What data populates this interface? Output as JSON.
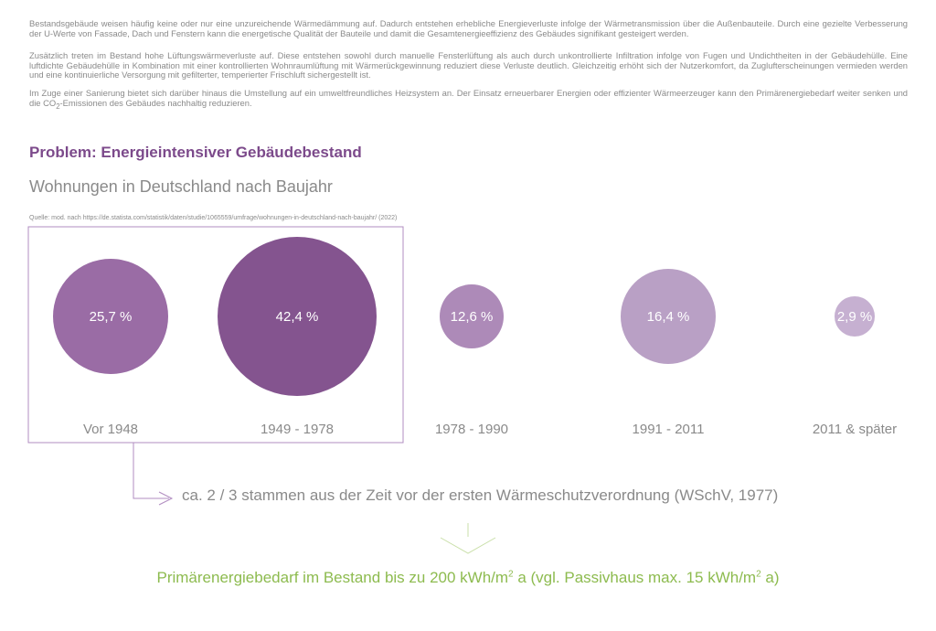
{
  "paragraphs": [
    "Bestandsgebäude weisen häufig keine oder nur eine unzureichende Wärmedämmung auf. Dadurch entstehen erhebliche Energieverluste infolge der Wärmetransmission über die Außenbauteile. Durch eine gezielte Verbesserung der U-Werte von Fassade, Dach und Fenstern kann die energetische Qualität der Bauteile und damit die Gesamtenergieeffizienz des Gebäudes signifikant gesteigert werden.",
    "Zusätzlich treten im Bestand hohe Lüftungswärmeverluste auf. Diese entstehen sowohl durch manuelle Fensterlüftung als auch durch unkontrollierte Infiltration infolge von Fugen und Undichtheiten in der Gebäudehülle. Eine luftdichte Gebäudehülle in Kombination mit einer kontrollierten Wohnraumlüftung mit Wärmerückgewinnung reduziert diese Verluste deutlich. Gleichzeitig erhöht sich der Nutzerkomfort, da Zuglufterscheinungen vermieden werden und eine kontinuierliche Versorgung mit gefilterter, temperierter Frischluft sichergestellt ist.",
    {
      "before": "Im Zuge einer Sanierung bietet sich darüber hinaus die Umstellung auf ein umweltfreundliches Heizsystem an. Der Einsatz erneuerbarer Energien oder effizienter Wärmeerzeuger kann den Primärenergiebedarf weiter senken und die CO",
      "sub": "2",
      "after": "-Emissionen des Gebäudes nachhaltig reduzieren."
    }
  ],
  "title": "Problem: Energieintensiver Gebäudebestand",
  "source": "Quelle: mod. nach https://de.statista.com/statistik/daten/studie/1065559/umfrage/wohnungen-in-deutschland-nach-baujahr/ (2022)",
  "chart_data": {
    "type": "bubble",
    "title": "Wohnungen in Deutschland nach Baujahr",
    "categories": [
      "Vor 1948",
      "1949 - 1978",
      "1978 - 1990",
      "1991 - 2011",
      "2011 & später"
    ],
    "values": [
      25.7,
      42.4,
      12.6,
      16.4,
      2.9
    ],
    "labels": [
      "25,7 %",
      "42,4 %",
      "12,6 %",
      "16,4 %",
      "2,9 %"
    ],
    "colors": [
      "#9a6ca5",
      "#84548f",
      "#ad8ab8",
      "#b9a0c5",
      "#c6b0d1"
    ],
    "highlighted": [
      "Vor 1948",
      "1949 - 1978"
    ]
  },
  "note": "ca. 2 / 3 stammen aus der Zeit vor der ersten Wärmeschutzverordnung (WSchV, 1977)",
  "result": {
    "a": "Primärenergiebedarf im Bestand bis zu 200 kWh/m",
    "sup1": "2",
    "b": " a (vgl. Passivhaus max. 15 kWh/m",
    "sup2": "2",
    "c": " a)"
  },
  "colors": {
    "purple": "#7c4a8b",
    "frame": "#b08cc0",
    "green": "#8dbb4f",
    "text": "#8a8a8a"
  }
}
